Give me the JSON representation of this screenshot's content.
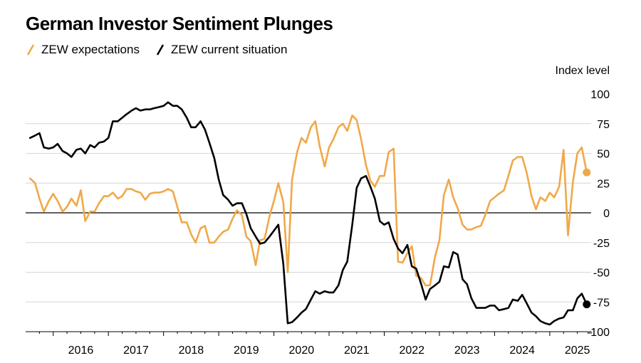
{
  "title": "German Investor Sentiment Plunges",
  "legend": {
    "expectations": "ZEW expectations",
    "current": "ZEW current situation"
  },
  "colors": {
    "expectations": "#f0a848",
    "current": "#000000",
    "grid": "#d6d6d6",
    "zero": "#000000"
  },
  "chart_data": {
    "type": "line",
    "title": "German Investor Sentiment Plunges",
    "ylabel": "Index level",
    "xlabel": "",
    "ylim": [
      -100,
      100
    ],
    "yticks": [
      100,
      75,
      50,
      25,
      0,
      -25,
      -50,
      -75,
      -100
    ],
    "ytick_labels": [
      "100",
      "75",
      "50",
      "25",
      "0",
      "-25",
      "-50",
      "-75",
      "-100"
    ],
    "xlim": [
      2015.5,
      2025.75
    ],
    "xticks": [
      2016,
      2017,
      2018,
      2019,
      2020,
      2021,
      2022,
      2023,
      2024,
      2025
    ],
    "xtick_labels": [
      "2016",
      "2017",
      "2018",
      "2019",
      "2020",
      "2021",
      "2022",
      "2023",
      "2024",
      "2025"
    ],
    "grid": true,
    "series": [
      {
        "name": "ZEW expectations",
        "color": "#f0a848",
        "end_marker": true,
        "points": [
          [
            2015.58,
            29
          ],
          [
            2015.67,
            25
          ],
          [
            2015.75,
            12
          ],
          [
            2015.83,
            1
          ],
          [
            2015.92,
            10
          ],
          [
            2016.0,
            16
          ],
          [
            2016.08,
            10
          ],
          [
            2016.17,
            1
          ],
          [
            2016.25,
            5
          ],
          [
            2016.33,
            12
          ],
          [
            2016.42,
            6
          ],
          [
            2016.5,
            19
          ],
          [
            2016.58,
            -7
          ],
          [
            2016.67,
            1
          ],
          [
            2016.75,
            1
          ],
          [
            2016.83,
            8
          ],
          [
            2016.92,
            14
          ],
          [
            2017.0,
            14
          ],
          [
            2017.08,
            17
          ],
          [
            2017.17,
            12
          ],
          [
            2017.25,
            14
          ],
          [
            2017.33,
            20
          ],
          [
            2017.42,
            20
          ],
          [
            2017.5,
            18
          ],
          [
            2017.58,
            17
          ],
          [
            2017.67,
            11
          ],
          [
            2017.75,
            16
          ],
          [
            2017.83,
            17
          ],
          [
            2017.92,
            17
          ],
          [
            2018.0,
            18
          ],
          [
            2018.08,
            20
          ],
          [
            2018.17,
            18
          ],
          [
            2018.25,
            5
          ],
          [
            2018.33,
            -8
          ],
          [
            2018.42,
            -8
          ],
          [
            2018.5,
            -18
          ],
          [
            2018.58,
            -25
          ],
          [
            2018.67,
            -13
          ],
          [
            2018.75,
            -11
          ],
          [
            2018.83,
            -25
          ],
          [
            2018.92,
            -25
          ],
          [
            2019.0,
            -20
          ],
          [
            2019.08,
            -16
          ],
          [
            2019.17,
            -14
          ],
          [
            2019.25,
            -5
          ],
          [
            2019.33,
            2
          ],
          [
            2019.42,
            -2
          ],
          [
            2019.5,
            -20
          ],
          [
            2019.58,
            -24
          ],
          [
            2019.67,
            -44
          ],
          [
            2019.75,
            -23
          ],
          [
            2019.83,
            -22
          ],
          [
            2019.92,
            -3
          ],
          [
            2020.0,
            10
          ],
          [
            2020.08,
            25
          ],
          [
            2020.17,
            9
          ],
          [
            2020.25,
            -50
          ],
          [
            2020.33,
            28
          ],
          [
            2020.42,
            51
          ],
          [
            2020.5,
            63
          ],
          [
            2020.58,
            59
          ],
          [
            2020.67,
            72
          ],
          [
            2020.75,
            77
          ],
          [
            2020.83,
            56
          ],
          [
            2020.92,
            39
          ],
          [
            2021.0,
            55
          ],
          [
            2021.08,
            62
          ],
          [
            2021.17,
            72
          ],
          [
            2021.25,
            75
          ],
          [
            2021.33,
            69
          ],
          [
            2021.42,
            82
          ],
          [
            2021.5,
            78
          ],
          [
            2021.58,
            62
          ],
          [
            2021.67,
            40
          ],
          [
            2021.75,
            27
          ],
          [
            2021.83,
            22
          ],
          [
            2021.92,
            31
          ],
          [
            2022.0,
            31
          ],
          [
            2022.08,
            51
          ],
          [
            2022.17,
            54
          ],
          [
            2022.25,
            -41
          ],
          [
            2022.33,
            -42
          ],
          [
            2022.42,
            -34
          ],
          [
            2022.5,
            -28
          ],
          [
            2022.58,
            -53
          ],
          [
            2022.67,
            -55
          ],
          [
            2022.75,
            -61
          ],
          [
            2022.83,
            -61
          ],
          [
            2022.92,
            -37
          ],
          [
            2023.0,
            -23
          ],
          [
            2023.08,
            15
          ],
          [
            2023.17,
            28
          ],
          [
            2023.25,
            13
          ],
          [
            2023.33,
            4
          ],
          [
            2023.42,
            -10
          ],
          [
            2023.5,
            -14
          ],
          [
            2023.58,
            -14
          ],
          [
            2023.67,
            -12
          ],
          [
            2023.75,
            -11
          ],
          [
            2023.83,
            -2
          ],
          [
            2023.92,
            10
          ],
          [
            2024.0,
            13
          ],
          [
            2024.08,
            16
          ],
          [
            2024.17,
            19
          ],
          [
            2024.25,
            31
          ],
          [
            2024.33,
            44
          ],
          [
            2024.42,
            47
          ],
          [
            2024.5,
            47
          ],
          [
            2024.58,
            34
          ],
          [
            2024.67,
            14
          ],
          [
            2024.75,
            3
          ],
          [
            2024.83,
            13
          ],
          [
            2024.92,
            10
          ],
          [
            2025.0,
            17
          ],
          [
            2025.08,
            13
          ],
          [
            2025.17,
            22
          ],
          [
            2025.25,
            53
          ],
          [
            2025.33,
            -19
          ],
          [
            2025.42,
            26
          ],
          [
            2025.5,
            50
          ],
          [
            2025.58,
            55
          ],
          [
            2025.67,
            34
          ]
        ]
      },
      {
        "name": "ZEW current situation",
        "color": "#000000",
        "end_marker": true,
        "points": [
          [
            2015.58,
            63
          ],
          [
            2015.67,
            65
          ],
          [
            2015.75,
            67
          ],
          [
            2015.83,
            55
          ],
          [
            2015.92,
            54
          ],
          [
            2016.0,
            55
          ],
          [
            2016.08,
            58
          ],
          [
            2016.17,
            52
          ],
          [
            2016.25,
            50
          ],
          [
            2016.33,
            47
          ],
          [
            2016.42,
            53
          ],
          [
            2016.5,
            54
          ],
          [
            2016.58,
            50
          ],
          [
            2016.67,
            57
          ],
          [
            2016.75,
            55
          ],
          [
            2016.83,
            59
          ],
          [
            2016.92,
            60
          ],
          [
            2017.0,
            63
          ],
          [
            2017.08,
            77
          ],
          [
            2017.17,
            77
          ],
          [
            2017.25,
            80
          ],
          [
            2017.33,
            83
          ],
          [
            2017.42,
            86
          ],
          [
            2017.5,
            88
          ],
          [
            2017.58,
            86
          ],
          [
            2017.67,
            87
          ],
          [
            2017.75,
            87
          ],
          [
            2017.83,
            88
          ],
          [
            2017.92,
            89
          ],
          [
            2018.0,
            90
          ],
          [
            2018.08,
            93
          ],
          [
            2018.17,
            90
          ],
          [
            2018.25,
            90
          ],
          [
            2018.33,
            87
          ],
          [
            2018.42,
            80
          ],
          [
            2018.5,
            72
          ],
          [
            2018.58,
            72
          ],
          [
            2018.67,
            77
          ],
          [
            2018.75,
            70
          ],
          [
            2018.83,
            59
          ],
          [
            2018.92,
            46
          ],
          [
            2019.0,
            28
          ],
          [
            2019.08,
            15
          ],
          [
            2019.17,
            11
          ],
          [
            2019.25,
            6
          ],
          [
            2019.33,
            8
          ],
          [
            2019.42,
            8
          ],
          [
            2019.5,
            -1
          ],
          [
            2019.58,
            -13
          ],
          [
            2019.67,
            -20
          ],
          [
            2019.75,
            -26
          ],
          [
            2019.83,
            -25
          ],
          [
            2019.92,
            -20
          ],
          [
            2020.0,
            -15
          ],
          [
            2020.08,
            -10
          ],
          [
            2020.17,
            -43
          ],
          [
            2020.25,
            -93
          ],
          [
            2020.33,
            -92
          ],
          [
            2020.42,
            -88
          ],
          [
            2020.5,
            -84
          ],
          [
            2020.58,
            -81
          ],
          [
            2020.67,
            -73
          ],
          [
            2020.75,
            -66
          ],
          [
            2020.83,
            -68
          ],
          [
            2020.92,
            -66
          ],
          [
            2021.0,
            -67
          ],
          [
            2021.08,
            -67
          ],
          [
            2021.17,
            -61
          ],
          [
            2021.25,
            -48
          ],
          [
            2021.33,
            -41
          ],
          [
            2021.42,
            -10
          ],
          [
            2021.5,
            21
          ],
          [
            2021.58,
            29
          ],
          [
            2021.67,
            31
          ],
          [
            2021.75,
            22
          ],
          [
            2021.83,
            12
          ],
          [
            2021.92,
            -7
          ],
          [
            2022.0,
            -10
          ],
          [
            2022.08,
            -8
          ],
          [
            2022.17,
            -22
          ],
          [
            2022.25,
            -30
          ],
          [
            2022.33,
            -34
          ],
          [
            2022.42,
            -27
          ],
          [
            2022.5,
            -45
          ],
          [
            2022.58,
            -47
          ],
          [
            2022.67,
            -60
          ],
          [
            2022.75,
            -73
          ],
          [
            2022.83,
            -64
          ],
          [
            2022.92,
            -61
          ],
          [
            2023.0,
            -58
          ],
          [
            2023.08,
            -45
          ],
          [
            2023.17,
            -46
          ],
          [
            2023.25,
            -33
          ],
          [
            2023.33,
            -35
          ],
          [
            2023.42,
            -56
          ],
          [
            2023.5,
            -60
          ],
          [
            2023.58,
            -72
          ],
          [
            2023.67,
            -80
          ],
          [
            2023.75,
            -80
          ],
          [
            2023.83,
            -80
          ],
          [
            2023.92,
            -78
          ],
          [
            2024.0,
            -78
          ],
          [
            2024.08,
            -82
          ],
          [
            2024.17,
            -81
          ],
          [
            2024.25,
            -80
          ],
          [
            2024.33,
            -73
          ],
          [
            2024.42,
            -74
          ],
          [
            2024.5,
            -69
          ],
          [
            2024.58,
            -76
          ],
          [
            2024.67,
            -84
          ],
          [
            2024.75,
            -87
          ],
          [
            2024.83,
            -91
          ],
          [
            2024.92,
            -93
          ],
          [
            2025.0,
            -94
          ],
          [
            2025.08,
            -91
          ],
          [
            2025.17,
            -89
          ],
          [
            2025.25,
            -88
          ],
          [
            2025.33,
            -82
          ],
          [
            2025.42,
            -82
          ],
          [
            2025.5,
            -72
          ],
          [
            2025.58,
            -68
          ],
          [
            2025.67,
            -77
          ]
        ]
      }
    ]
  }
}
